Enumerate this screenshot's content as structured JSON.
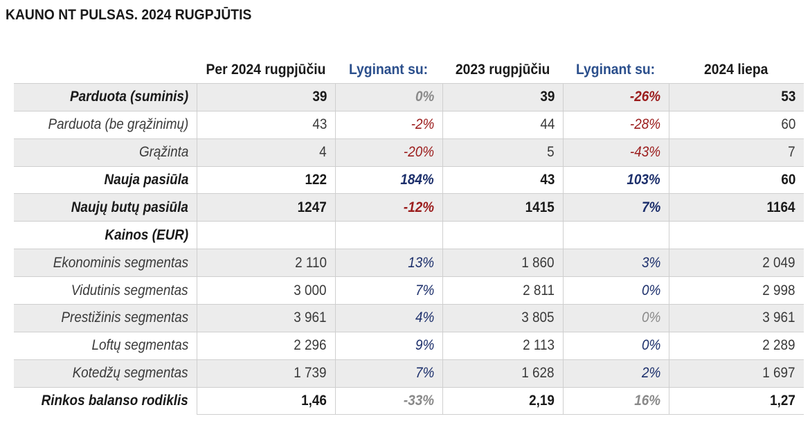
{
  "title": "KAUNO NT PULSAS. 2024 RUGPJŪTIS",
  "headers": [
    "",
    "Per 2024 rugpjūčiu",
    "Lyginant su:",
    "2023 rugpjūčiu",
    "Lyginant su:",
    "2024 liepa"
  ],
  "colors": {
    "red": "#9b1c1c",
    "blue": "#1c2f6b",
    "gray": "#8a8a8a",
    "header_blue": "#2b4f8c",
    "shade": "#ececec"
  },
  "rows": [
    {
      "label": "Parduota (suminis)",
      "bold": true,
      "shaded": true,
      "cur": "39",
      "p1": "0%",
      "p1c": "gray",
      "prev": "39",
      "p2": "-26%",
      "p2c": "red",
      "last": "53"
    },
    {
      "label": "Parduota (be grąžinimų)",
      "bold": false,
      "shaded": false,
      "cur": "43",
      "p1": "-2%",
      "p1c": "red",
      "prev": "44",
      "p2": "-28%",
      "p2c": "red",
      "last": "60"
    },
    {
      "label": "Grąžinta",
      "bold": false,
      "shaded": true,
      "cur": "4",
      "p1": "-20%",
      "p1c": "red",
      "prev": "5",
      "p2": "-43%",
      "p2c": "red",
      "last": "7"
    },
    {
      "label": "Nauja pasiūla",
      "bold": true,
      "shaded": false,
      "cur": "122",
      "p1": "184%",
      "p1c": "blue",
      "prev": "43",
      "p2": "103%",
      "p2c": "blue",
      "last": "60"
    },
    {
      "label": "Naujų butų pasiūla",
      "bold": true,
      "shaded": true,
      "cur": "1247",
      "p1": "-12%",
      "p1c": "red",
      "prev": "1415",
      "p2": "7%",
      "p2c": "blue",
      "last": "1164"
    },
    {
      "label": "Kainos (EUR)",
      "bold": true,
      "shaded": false,
      "cur": "",
      "p1": "",
      "p1c": "gray",
      "prev": "",
      "p2": "",
      "p2c": "gray",
      "last": ""
    },
    {
      "label": "Ekonominis segmentas",
      "bold": false,
      "shaded": true,
      "cur": "2 110",
      "p1": "13%",
      "p1c": "blue",
      "prev": "1 860",
      "p2": "3%",
      "p2c": "blue",
      "last": "2 049"
    },
    {
      "label": "Vidutinis segmentas",
      "bold": false,
      "shaded": false,
      "cur": "3 000",
      "p1": "7%",
      "p1c": "blue",
      "prev": "2 811",
      "p2": "0%",
      "p2c": "blue",
      "last": "2 998"
    },
    {
      "label": "Prestižinis segmentas",
      "bold": false,
      "shaded": true,
      "cur": "3 961",
      "p1": "4%",
      "p1c": "blue",
      "prev": "3 805",
      "p2": "0%",
      "p2c": "gray",
      "last": "3 961"
    },
    {
      "label": "Loftų segmentas",
      "bold": false,
      "shaded": false,
      "cur": "2 296",
      "p1": "9%",
      "p1c": "blue",
      "prev": "2 113",
      "p2": "0%",
      "p2c": "blue",
      "last": "2 289"
    },
    {
      "label": "Kotedžų segmentas",
      "bold": false,
      "shaded": true,
      "cur": "1 739",
      "p1": "7%",
      "p1c": "blue",
      "prev": "1 628",
      "p2": "2%",
      "p2c": "blue",
      "last": "1 697"
    },
    {
      "label": "Rinkos balanso rodiklis",
      "bold": true,
      "shaded": false,
      "cur": "1,46",
      "p1": "-33%",
      "p1c": "gray",
      "prev": "2,19",
      "p2": "16%",
      "p2c": "gray",
      "last": "1,27"
    }
  ]
}
